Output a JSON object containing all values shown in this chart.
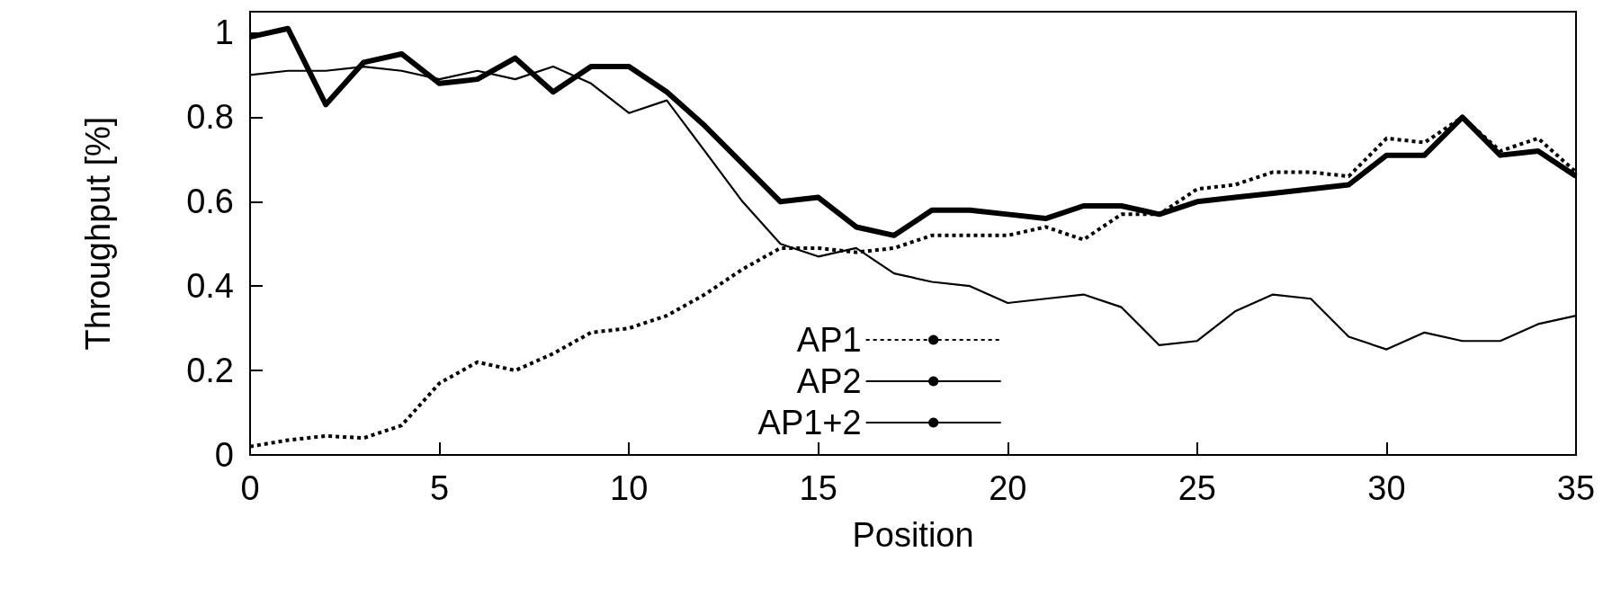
{
  "chart_data": {
    "type": "line",
    "xlabel": "Position",
    "ylabel": "Throughput [%]",
    "xlim": [
      0,
      35
    ],
    "xticks": [
      0,
      5,
      10,
      15,
      20,
      25,
      30,
      35
    ],
    "ylim": [
      0,
      1.05
    ],
    "yticks": [
      0,
      0.2,
      0.4,
      0.6,
      0.8,
      1
    ],
    "x": [
      0,
      1,
      2,
      3,
      4,
      5,
      6,
      7,
      8,
      9,
      10,
      11,
      12,
      13,
      14,
      15,
      16,
      17,
      18,
      19,
      20,
      21,
      22,
      23,
      24,
      25,
      26,
      27,
      28,
      29,
      30,
      31,
      32,
      33,
      34,
      35
    ],
    "legend": "bottom",
    "grid": false,
    "marker": "none",
    "series": [
      {
        "name": "AP1",
        "color": "#000000",
        "line_style": "dotted",
        "values": [
          0.02,
          0.035,
          0.045,
          0.04,
          0.07,
          0.17,
          0.22,
          0.2,
          0.24,
          0.29,
          0.3,
          0.33,
          0.38,
          0.44,
          0.49,
          0.49,
          0.48,
          0.49,
          0.52,
          0.52,
          0.52,
          0.54,
          0.51,
          0.57,
          0.57,
          0.63,
          0.64,
          0.67,
          0.67,
          0.66,
          0.75,
          0.74,
          0.8,
          0.72,
          0.75,
          0.67
        ]
      },
      {
        "name": "AP2",
        "color": "#000000",
        "line_style": "solid",
        "values": [
          0.9,
          0.91,
          0.91,
          0.92,
          0.91,
          0.89,
          0.91,
          0.89,
          0.92,
          0.88,
          0.81,
          0.84,
          0.72,
          0.6,
          0.5,
          0.47,
          0.49,
          0.43,
          0.41,
          0.4,
          0.36,
          0.37,
          0.38,
          0.35,
          0.26,
          0.27,
          0.34,
          0.38,
          0.37,
          0.28,
          0.25,
          0.29,
          0.27,
          0.27,
          0.31,
          0.33
        ]
      },
      {
        "name": "AP1+2",
        "color": "#000000",
        "line_style": "solid",
        "values": [
          0.99,
          1.01,
          0.83,
          0.93,
          0.95,
          0.88,
          0.89,
          0.94,
          0.86,
          0.92,
          0.92,
          0.86,
          0.78,
          0.69,
          0.6,
          0.61,
          0.54,
          0.52,
          0.58,
          0.58,
          0.57,
          0.56,
          0.59,
          0.59,
          0.57,
          0.6,
          0.61,
          0.62,
          0.63,
          0.64,
          0.71,
          0.71,
          0.8,
          0.71,
          0.72,
          0.66
        ]
      }
    ]
  }
}
